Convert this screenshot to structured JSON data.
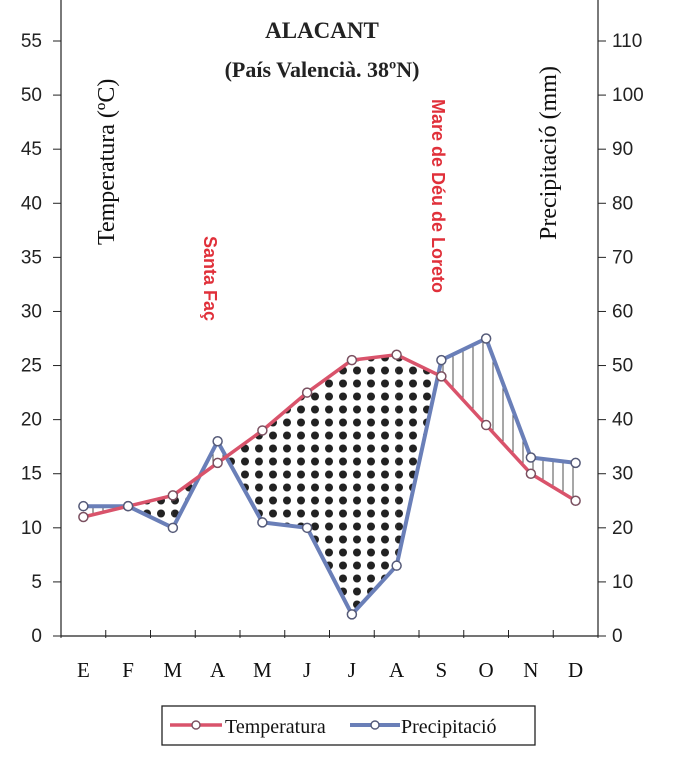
{
  "chart_data": {
    "type": "line",
    "title": "ALACANT",
    "subtitle": "(País Valencià. 38ºN)",
    "categories": [
      "E",
      "F",
      "M",
      "A",
      "M",
      "J",
      "J",
      "A",
      "S",
      "O",
      "N",
      "D"
    ],
    "ylabel_left": "Temperatura (ºC)",
    "ylabel_right": "Precipitació  (mm)",
    "left_axis": {
      "min": 0,
      "max": 55,
      "ticks": [
        0,
        5,
        10,
        15,
        20,
        25,
        30,
        35,
        40,
        45,
        50,
        55
      ]
    },
    "right_axis": {
      "min": 0,
      "max": 110,
      "ticks": [
        0,
        10,
        20,
        30,
        40,
        50,
        60,
        70,
        80,
        90,
        100,
        110
      ]
    },
    "series": [
      {
        "name": "Temperatura",
        "axis": "left",
        "color": "#d9536b",
        "values": [
          11,
          12,
          13,
          16,
          19,
          22.5,
          25.5,
          26,
          24,
          19.5,
          15,
          12.5
        ]
      },
      {
        "name": "Precipitació",
        "axis": "right",
        "color": "#6a7fb8",
        "values": [
          24,
          24,
          20,
          36,
          21,
          20,
          4,
          13,
          51,
          55,
          33,
          32
        ]
      }
    ],
    "legend": [
      "Temperatura",
      "Precipitació"
    ],
    "legend_position": "bottom",
    "annotations": [
      {
        "text": "Santa Faç",
        "month": "A",
        "color": "#e0303a"
      },
      {
        "text": "Mare de Déu de Loreto",
        "month": "S",
        "color": "#e0303a"
      }
    ],
    "shading": {
      "dry_period": "dotted",
      "humid_period": "hatched"
    }
  }
}
